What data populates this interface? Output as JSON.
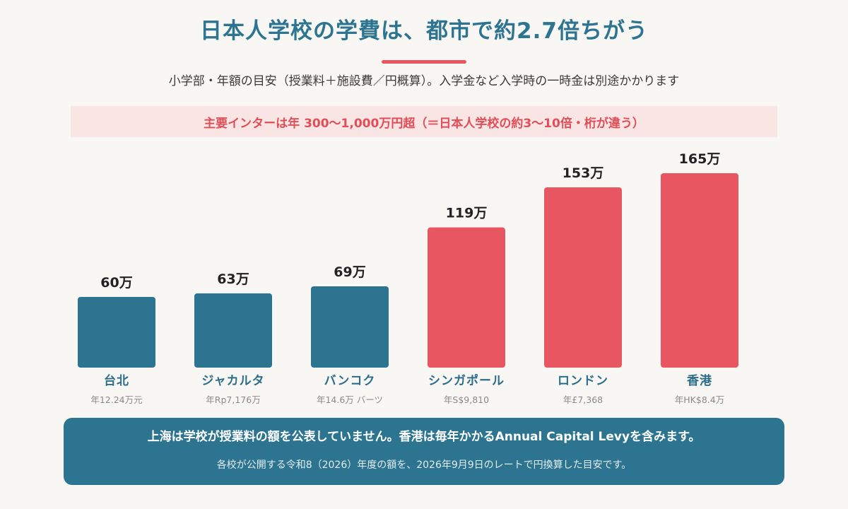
{
  "header": {
    "title": "日本人学校の学費は、都市で約2.7倍ちがう",
    "subtitle": "小学部・年額の目安（授業料＋施設費／円概算）。入学金など入学時の一時金は別途かかります"
  },
  "banner": {
    "text": "主要インターは年 300〜1,000万円超（＝日本人学校の約3〜10倍・桁が違う）"
  },
  "colors": {
    "low": "#2c7490",
    "high": "#e85761",
    "value_label": "#222222",
    "category_label": "#2c6e8a",
    "local_label": "#8a8a8a"
  },
  "chart_data": {
    "type": "bar",
    "title": "",
    "xlabel": "",
    "ylabel": "",
    "grid": false,
    "ylim": [
      0,
      165
    ],
    "categories": [
      "台北",
      "ジャカルタ",
      "バンコク",
      "シンガポール",
      "ロンドン",
      "香港"
    ],
    "values": [
      60,
      63,
      69,
      119,
      153,
      165
    ],
    "value_labels": [
      "60万",
      "63万",
      "69万",
      "119万",
      "153万",
      "165万"
    ],
    "local_amounts": [
      "年12.24万元",
      "年Rp7,176万",
      "年14.6万 バーツ",
      "年S$9,810",
      "年£7,368",
      "年HK$8.4万"
    ],
    "bar_colors": [
      "#2c7490",
      "#2c7490",
      "#2c7490",
      "#e85761",
      "#e85761",
      "#e85761"
    ]
  },
  "footer": {
    "main": "上海は学校が授業料の額を公表していません。香港は毎年かかるAnnual Capital Levyを含みます。",
    "sub": "各校が公開する令和8（2026）年度の額を、2026年9月9日のレートで円換算した目安です。"
  }
}
